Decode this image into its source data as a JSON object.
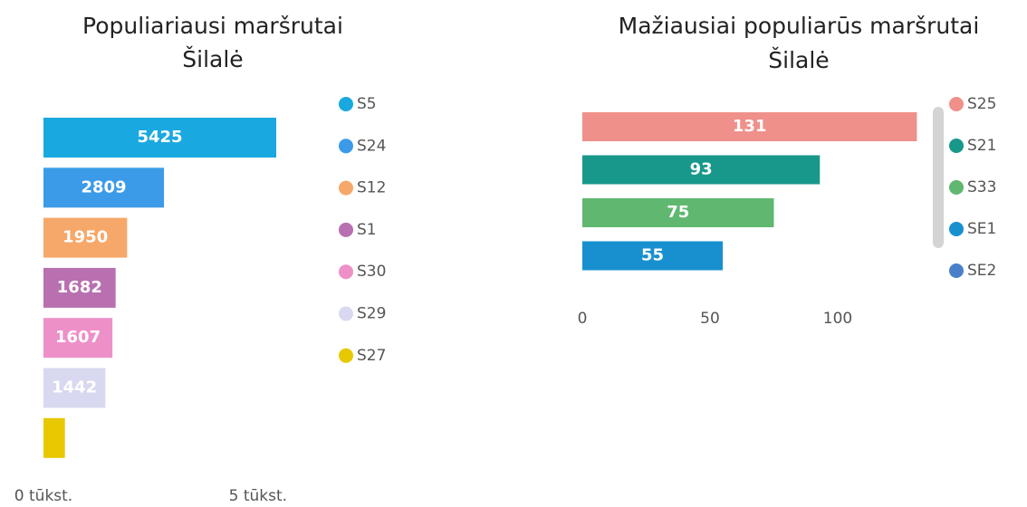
{
  "chart_data": [
    {
      "type": "bar",
      "orientation": "horizontal",
      "title": [
        "Populiariausi maršrutai",
        "Šilalė"
      ],
      "series": [
        {
          "name": "S5",
          "color": "#1aa8e0",
          "values": [
            5425
          ]
        },
        {
          "name": "S24",
          "color": "#3c9be8",
          "values": [
            2809
          ]
        },
        {
          "name": "S12",
          "color": "#f5a86a",
          "values": [
            1950
          ]
        },
        {
          "name": "S1",
          "color": "#b870b0",
          "values": [
            1682
          ]
        },
        {
          "name": "S30",
          "color": "#ee90c8",
          "values": [
            1607
          ]
        },
        {
          "name": "S29",
          "color": "#d8d8f0",
          "values": [
            1442
          ]
        },
        {
          "name": "S27",
          "color": "#e8c800",
          "values": [
            500
          ],
          "value_labels": [
            null
          ]
        }
      ],
      "xlim": [
        0,
        6000
      ],
      "xticks": [
        {
          "value": 0,
          "label": "0 tūkst."
        },
        {
          "value": 5000,
          "label": "5 tūkst."
        }
      ]
    },
    {
      "type": "bar",
      "orientation": "horizontal",
      "title": [
        "Mažiausiai populiarūs maršrutai",
        "Šilalė"
      ],
      "series": [
        {
          "name": "S25",
          "color": "#f0908a",
          "values": [
            131
          ]
        },
        {
          "name": "S21",
          "color": "#18988a",
          "values": [
            93
          ]
        },
        {
          "name": "S33",
          "color": "#60b870",
          "values": [
            75
          ]
        },
        {
          "name": "SE1",
          "color": "#1890d0",
          "values": [
            55
          ]
        },
        {
          "name": "SE2",
          "color": "#4a80c8",
          "values": [
            null
          ]
        }
      ],
      "xlim": [
        0,
        135
      ],
      "xticks": [
        0,
        50,
        100
      ]
    }
  ]
}
